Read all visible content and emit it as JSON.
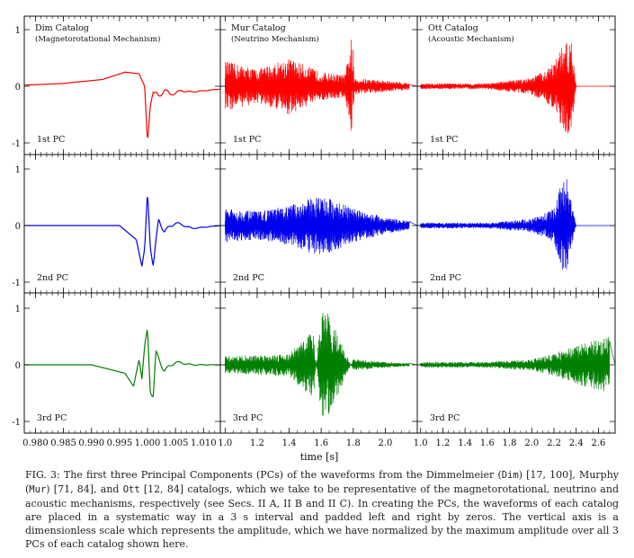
{
  "figure": {
    "columns": [
      {
        "catalog": "Dim Catalog",
        "mechanism": "(Magnetorotational Mechanism)"
      },
      {
        "catalog": "Mur Catalog",
        "mechanism": "(Neutrino Mechanism)"
      },
      {
        "catalog": "Ott Catalog",
        "mechanism": "(Acoustic Mechanism)"
      }
    ],
    "rows": [
      {
        "label": "1st PC",
        "color": "#ff0000"
      },
      {
        "label": "2nd PC",
        "color": "#0000ee"
      },
      {
        "label": "3rd PC",
        "color": "#008000"
      }
    ],
    "y_ticks": [
      "1",
      "0",
      "-1"
    ],
    "xlabel": "time [s]"
  },
  "chart_data": [
    {
      "type": "line",
      "panel": "Dim Catalog",
      "xlim": [
        0.978,
        1.013
      ],
      "ticks": [
        {
          "v": 0.98,
          "label": "0.980"
        },
        {
          "v": 0.985,
          "label": "0.985"
        },
        {
          "v": 0.99,
          "label": "0.990"
        },
        {
          "v": 0.995,
          "label": "0.995"
        },
        {
          "v": 1.0,
          "label": "1.000"
        },
        {
          "v": 1.005,
          "label": "1.005"
        },
        {
          "v": 1.01,
          "label": "1.010"
        }
      ],
      "ylim": [
        -1.1,
        1.1
      ],
      "series": [
        {
          "name": "1st PC",
          "x": [
            0.978,
            0.985,
            0.992,
            0.996,
            0.9985,
            0.9995,
            1.0,
            1.0005,
            1.001,
            1.002,
            1.003,
            1.004,
            1.006,
            1.008,
            1.01,
            1.013
          ],
          "y": [
            0.02,
            0.05,
            0.12,
            0.25,
            0.22,
            0.0,
            -1.0,
            -0.35,
            -0.1,
            -0.2,
            -0.05,
            -0.15,
            -0.08,
            -0.1,
            -0.08,
            -0.05
          ]
        },
        {
          "name": "2nd PC",
          "x": [
            0.978,
            0.99,
            0.995,
            0.998,
            0.999,
            0.9995,
            1.0,
            1.0005,
            1.001,
            1.002,
            1.003,
            1.005,
            1.008,
            1.013
          ],
          "y": [
            0.0,
            0.0,
            0.0,
            -0.25,
            -0.72,
            -0.4,
            0.62,
            -0.4,
            -0.72,
            0.1,
            -0.1,
            0.05,
            -0.05,
            0.0
          ]
        },
        {
          "name": "3rd PC",
          "x": [
            0.978,
            0.99,
            0.996,
            0.9975,
            0.9985,
            0.999,
            0.9995,
            1.0,
            1.0005,
            1.001,
            1.0015,
            1.003,
            1.005,
            1.008,
            1.013
          ],
          "y": [
            0.0,
            0.0,
            -0.15,
            -0.38,
            0.1,
            -0.25,
            0.35,
            0.65,
            -0.5,
            -0.58,
            0.2,
            -0.1,
            0.05,
            0.0,
            0.0
          ]
        }
      ]
    },
    {
      "type": "line",
      "panel": "Mur Catalog",
      "xlim": [
        0.97,
        2.2
      ],
      "ticks": [
        {
          "v": 1.0,
          "label": "1.0"
        },
        {
          "v": 1.2,
          "label": "1.2"
        },
        {
          "v": 1.4,
          "label": "1.4"
        },
        {
          "v": 1.6,
          "label": "1.6"
        },
        {
          "v": 1.8,
          "label": "1.8"
        },
        {
          "v": 2.0,
          "label": "2.0"
        }
      ],
      "ylim": [
        -1.1,
        1.1
      ],
      "series": [
        {
          "name": "1st PC",
          "x": [
            0.97,
            1.0,
            1.2,
            1.4,
            1.6,
            1.75,
            1.79,
            1.8,
            1.81,
            2.0,
            2.2
          ],
          "y": [
            0.0,
            0.45,
            0.3,
            0.5,
            0.25,
            0.2,
            0.9,
            -0.7,
            0.15,
            0.1,
            0.05
          ]
        },
        {
          "name": "2nd PC",
          "x": [
            0.97,
            1.0,
            1.2,
            1.4,
            1.6,
            1.8,
            2.0,
            2.2
          ],
          "y": [
            0.0,
            0.3,
            0.25,
            0.35,
            0.55,
            0.3,
            0.15,
            0.05
          ]
        },
        {
          "name": "3rd PC",
          "x": [
            0.97,
            1.0,
            1.4,
            1.55,
            1.6,
            1.65,
            1.8,
            2.0,
            2.2
          ],
          "y": [
            0.0,
            0.15,
            0.2,
            0.62,
            -0.95,
            -0.9,
            0.1,
            0.05,
            0.02
          ]
        }
      ]
    },
    {
      "type": "line",
      "panel": "Ott Catalog",
      "xlim": [
        0.97,
        2.75
      ],
      "ticks": [
        {
          "v": 1.0,
          "label": "1.0"
        },
        {
          "v": 1.2,
          "label": "1.2"
        },
        {
          "v": 1.4,
          "label": "1.4"
        },
        {
          "v": 1.6,
          "label": "1.6"
        },
        {
          "v": 1.8,
          "label": "1.8"
        },
        {
          "v": 2.0,
          "label": "2.0"
        },
        {
          "v": 2.2,
          "label": "2.2"
        },
        {
          "v": 2.4,
          "label": "2.4"
        },
        {
          "v": 2.6,
          "label": "2.6"
        }
      ],
      "ylim": [
        -1.1,
        1.1
      ],
      "series": [
        {
          "name": "1st PC",
          "x": [
            0.97,
            1.0,
            1.6,
            2.0,
            2.2,
            2.3,
            2.35,
            2.4,
            2.75
          ],
          "y": [
            0.0,
            0.05,
            0.05,
            0.15,
            0.4,
            0.85,
            0.9,
            0.0,
            0.0
          ]
        },
        {
          "name": "2nd PC",
          "x": [
            0.97,
            1.0,
            1.6,
            2.0,
            2.2,
            2.3,
            2.35,
            2.4,
            2.75
          ],
          "y": [
            0.0,
            0.05,
            0.05,
            0.12,
            0.3,
            0.98,
            0.5,
            0.0,
            0.0
          ]
        },
        {
          "name": "3rd PC",
          "x": [
            0.97,
            1.0,
            1.6,
            2.0,
            2.2,
            2.4,
            2.6,
            2.7,
            2.75
          ],
          "y": [
            0.0,
            0.05,
            0.05,
            0.1,
            0.2,
            0.35,
            0.45,
            0.5,
            0.0
          ]
        }
      ]
    }
  ],
  "caption": {
    "fig_label": "FIG. 3:",
    "parts": [
      "The first three Principal Components (PCs) of the waveforms from the Dimmelmeier (",
      "Dim",
      ") [17, 100], Murphy (",
      "Mur",
      ") [71, 84], and ",
      "Ott",
      " [12, 84] catalogs, which we take to be representative of the magnetorotational, neutrino and acoustic mechanisms, respectively (see Secs. II A, II B and II C). In creating the PCs, the waveforms of each catalog are placed in a systematic way in a 3 s interval and padded left and right by zeros. The vertical axis is a dimensionless scale which represents the amplitude, which we have normalized by the maximum amplitude over all 3 PCs of each catalog shown here."
    ]
  }
}
